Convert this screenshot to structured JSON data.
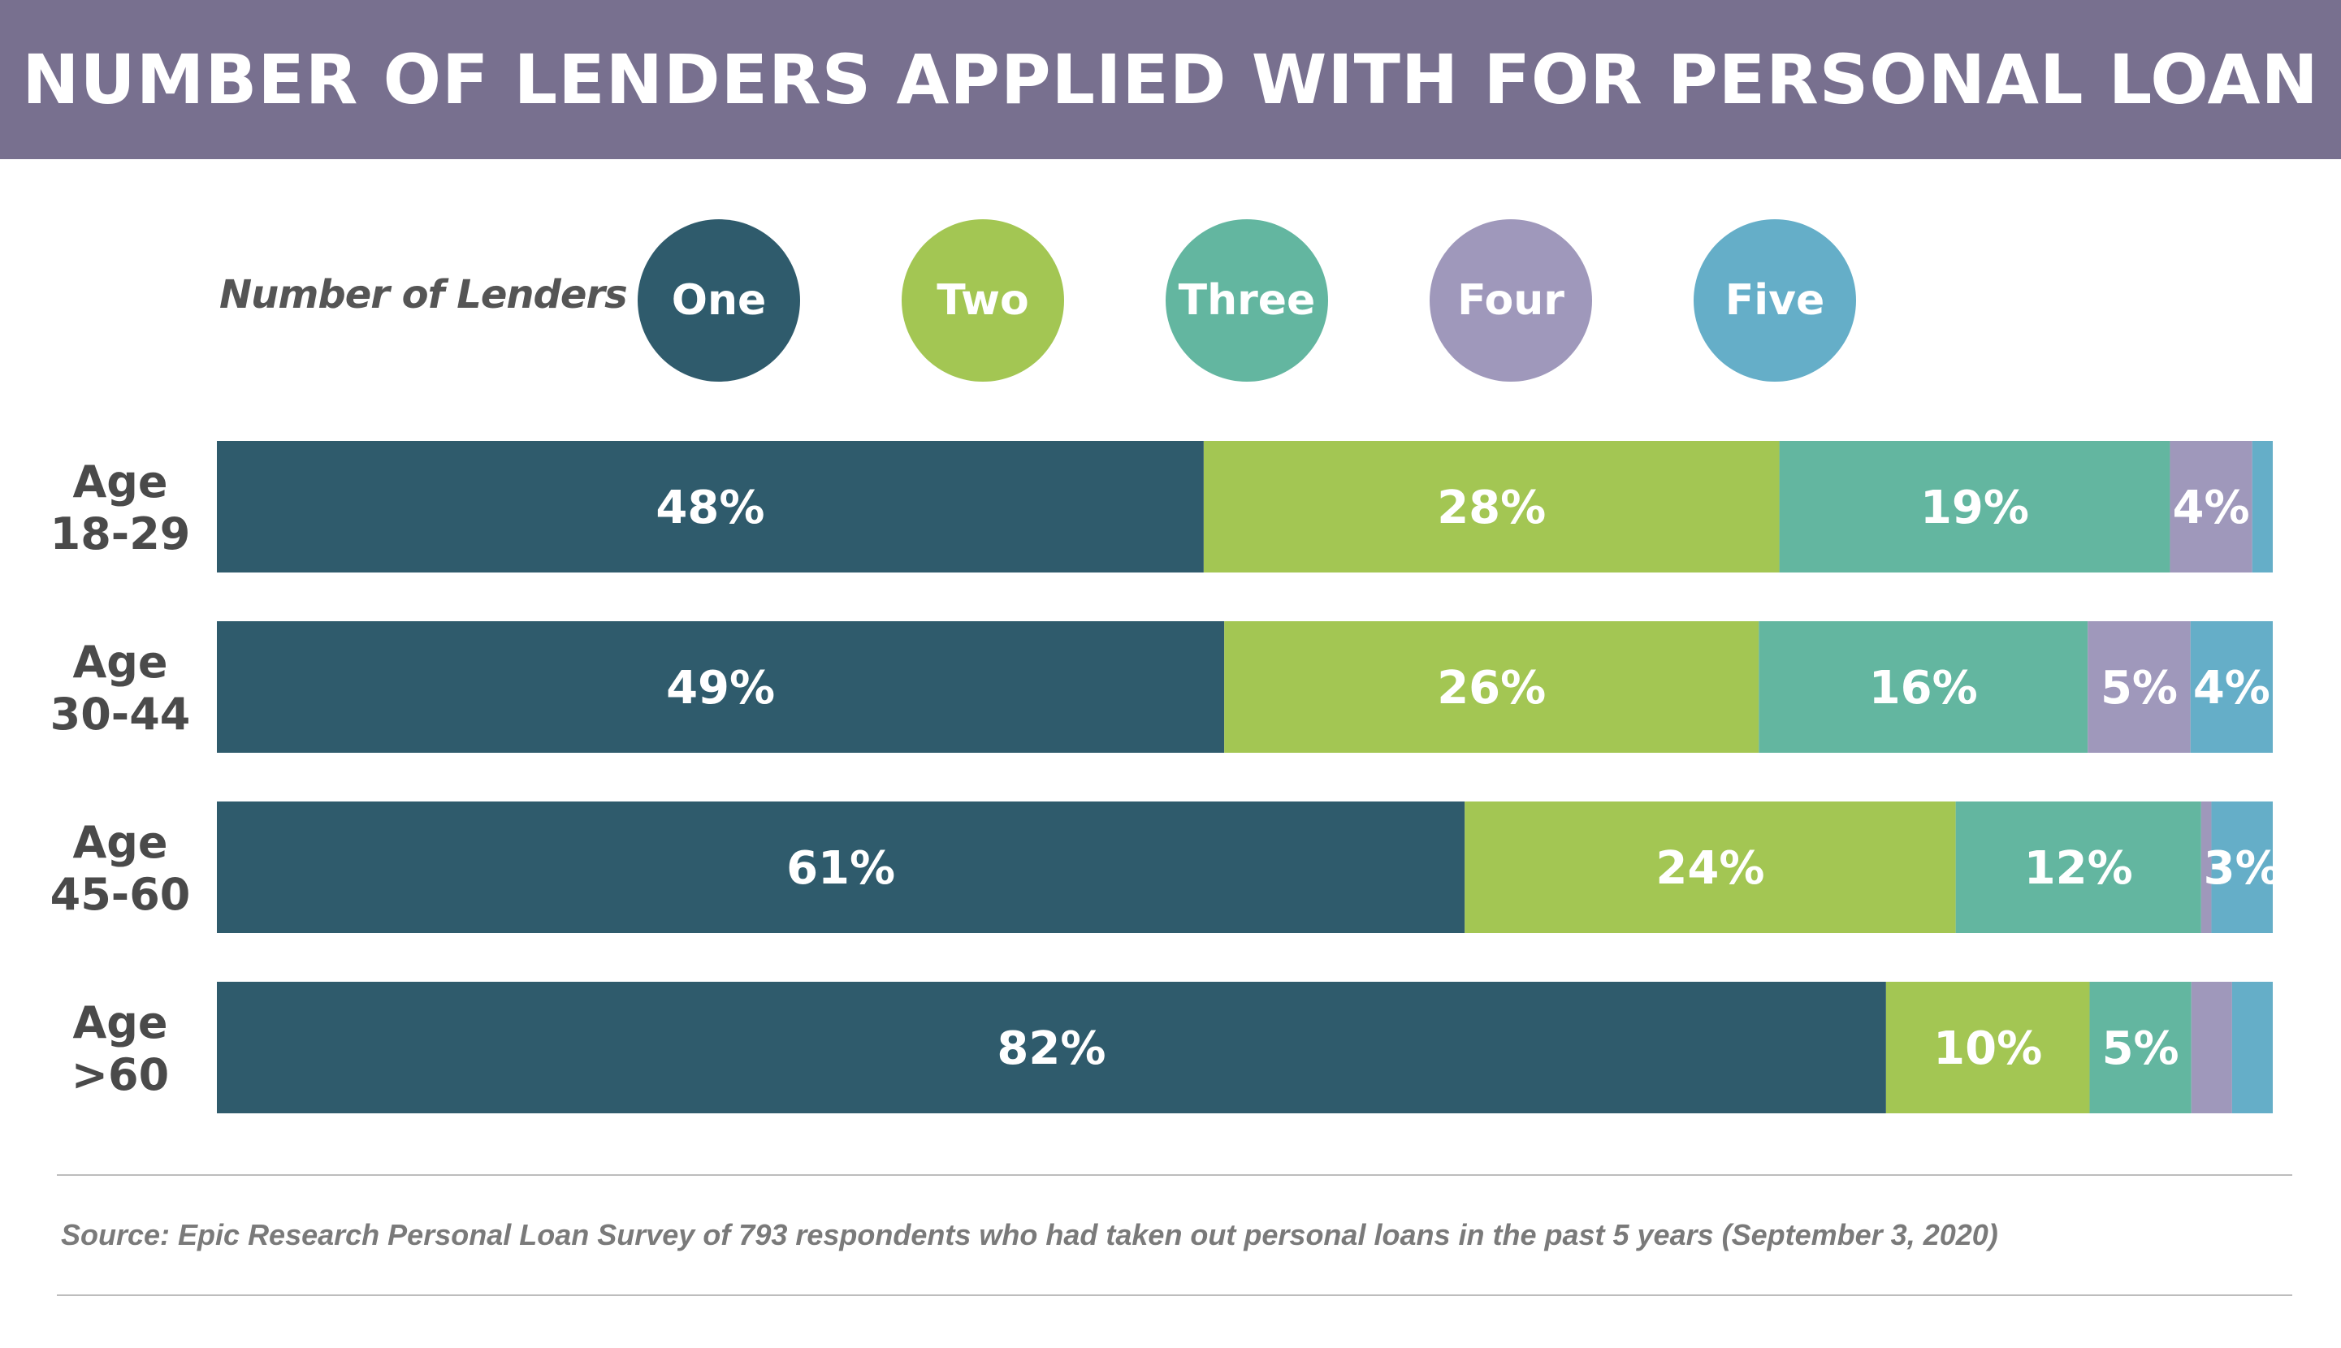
{
  "chart_data": {
    "type": "bar",
    "orientation": "horizontal",
    "stacked": true,
    "title": "NUMBER OF LENDERS APPLIED WITH FOR PERSONAL LOAN",
    "legend_title": "Number of Lenders",
    "legend_placement": "top",
    "categories": [
      [
        "Age",
        "18-29"
      ],
      [
        "Age",
        "30-44"
      ],
      [
        "Age",
        "45-60"
      ],
      [
        "Age",
        ">60"
      ]
    ],
    "series": [
      {
        "name": "One",
        "color": "#2f5b6c",
        "values": [
          48,
          49,
          61,
          82
        ],
        "labels": [
          "48%",
          "49%",
          "61%",
          "82%"
        ]
      },
      {
        "name": "Two",
        "color": "#a3c653",
        "values": [
          28,
          26,
          24,
          10
        ],
        "labels": [
          "28%",
          "26%",
          "24%",
          "10%"
        ]
      },
      {
        "name": "Three",
        "color": "#63b6a0",
        "values": [
          19,
          16,
          12,
          5
        ],
        "labels": [
          "19%",
          "16%",
          "12%",
          "5%"
        ]
      },
      {
        "name": "Four",
        "color": "#9f98bb",
        "values": [
          4,
          5,
          0.5,
          2
        ],
        "labels": [
          "4%",
          "5%",
          "",
          ""
        ]
      },
      {
        "name": "Five",
        "color": "#65aec8",
        "values": [
          1,
          4,
          3,
          2
        ],
        "labels": [
          "",
          "4%",
          "3%",
          ""
        ]
      }
    ],
    "xlim": [
      0,
      100
    ],
    "grid": false,
    "source": "Source: Epic Research Personal Loan Survey of 793 respondents who had taken out personal loans in the past 5 years (September 3, 2020)"
  }
}
